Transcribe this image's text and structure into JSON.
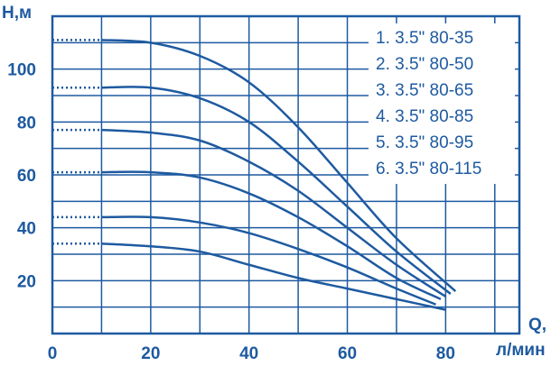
{
  "chart_data": {
    "type": "line",
    "title": "",
    "ylabel": "H,м",
    "xlabel_line1": "Q,",
    "xlabel_line2": "л/мин",
    "xlim": [
      0,
      95
    ],
    "ylim": [
      0,
      120
    ],
    "x_ticks": [
      "0",
      "20",
      "40",
      "60",
      "80"
    ],
    "y_ticks": [
      "20",
      "40",
      "60",
      "80",
      "100"
    ],
    "grid": true,
    "legend_position": "top-right",
    "colors": {
      "curve": "#1e5aa0",
      "grid": "#1e5aa0",
      "text": "#1e5aa0"
    },
    "series": [
      {
        "name": "1. 3.5\" 80-35",
        "x": [
          10,
          20,
          30,
          40,
          50,
          60,
          70,
          80
        ],
        "y": [
          34,
          33,
          31,
          26,
          21,
          17,
          13,
          9
        ]
      },
      {
        "name": "2. 3.5\" 80-50",
        "x": [
          10,
          20,
          30,
          40,
          50,
          60,
          70,
          78
        ],
        "y": [
          44,
          44,
          42,
          38,
          32,
          25,
          17,
          11
        ]
      },
      {
        "name": "3. 3.5\" 80-65",
        "x": [
          10,
          20,
          30,
          40,
          50,
          60,
          70,
          79
        ],
        "y": [
          61,
          61,
          59,
          53,
          44,
          33,
          21,
          13
        ]
      },
      {
        "name": "4. 3.5\" 80-85",
        "x": [
          10,
          20,
          30,
          40,
          50,
          60,
          70,
          80
        ],
        "y": [
          77,
          76,
          73,
          65,
          54,
          40,
          26,
          14
        ]
      },
      {
        "name": "5. 3.5\" 80-95",
        "x": [
          10,
          20,
          30,
          40,
          50,
          60,
          70,
          81
        ],
        "y": [
          93,
          93,
          89,
          80,
          65,
          48,
          31,
          15
        ]
      },
      {
        "name": "6. 3.5\" 80-115",
        "x": [
          10,
          20,
          30,
          40,
          50,
          60,
          70,
          82
        ],
        "y": [
          111,
          110,
          105,
          95,
          78,
          57,
          36,
          16
        ]
      }
    ],
    "dotted_start": {
      "x": 0,
      "to_x": 10
    }
  }
}
